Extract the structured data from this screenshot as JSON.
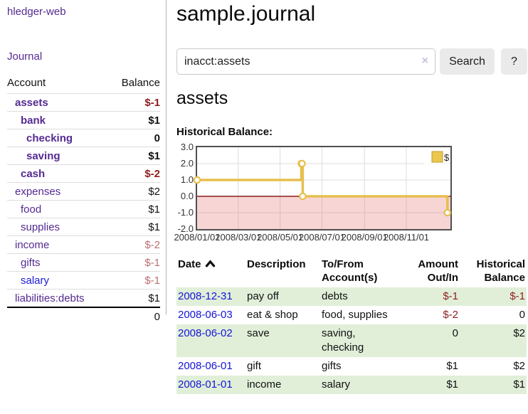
{
  "sidebar": {
    "brand": "hledger-web",
    "nav_journal": "Journal",
    "accounts": {
      "col_account": "Account",
      "col_balance": "Balance",
      "rows": [
        {
          "account": "assets",
          "balance": "$-1"
        },
        {
          "account": "bank",
          "balance": "$1"
        },
        {
          "account": "checking",
          "balance": "0"
        },
        {
          "account": "saving",
          "balance": "$1"
        },
        {
          "account": "cash",
          "balance": "$-2"
        },
        {
          "account": "expenses",
          "balance": "$2"
        },
        {
          "account": "food",
          "balance": "$1"
        },
        {
          "account": "supplies",
          "balance": "$1"
        },
        {
          "account": "income",
          "balance": "$-2"
        },
        {
          "account": "gifts",
          "balance": "$-1"
        },
        {
          "account": "salary",
          "balance": "$-1"
        },
        {
          "account": "liabilities:debts",
          "balance": "$1"
        }
      ],
      "total": "0"
    }
  },
  "main": {
    "title": "sample.journal",
    "search": {
      "value": "inacct:assets",
      "clear_icon": "×",
      "button": "Search",
      "help": "?"
    },
    "account_heading": "assets",
    "chart": {
      "heading": "Historical Balance:",
      "chart_data": {
        "type": "line",
        "step": true,
        "series": [
          {
            "name": "$",
            "points": [
              [
                "2008-01-01",
                1
              ],
              [
                "2008-06-01",
                2
              ],
              [
                "2008-06-02",
                2
              ],
              [
                "2008-06-03",
                0
              ],
              [
                "2008-12-31",
                -1
              ]
            ]
          }
        ],
        "x_ticks": [
          "2008/01/01",
          "2008/03/01",
          "2008/05/01",
          "2008/07/01",
          "2008/09/01",
          "2008/11/01"
        ],
        "y_ticks": [
          "3.0",
          "2.0",
          "1.0",
          "0.0",
          "-1.0",
          "-2.0"
        ],
        "ylim": [
          -2,
          3
        ],
        "legend_position": "top-right",
        "negative_region_shaded": true,
        "colors": {
          "line": "#e6bf4e",
          "marker_fill": "#ffffff",
          "negative_fill": "rgba(229,115,115,0.30)",
          "zero_line": "#8c1c1c",
          "grid": "#dcdcdc",
          "border": "#4f4f4f",
          "legend_fill": "#ecc74f",
          "legend_border": "#c29b2c"
        }
      }
    },
    "register": {
      "headers": {
        "date": "Date",
        "description": "Description",
        "accounts": "To/From\nAccount(s)",
        "amount": "Amount\nOut/In",
        "balance": "Historical\nBalance"
      },
      "rows": [
        {
          "date": "2008-12-31",
          "description": "pay off",
          "accounts": "debts",
          "amount": "$-1",
          "balance": "$-1"
        },
        {
          "date": "2008-06-03",
          "description": "eat & shop",
          "accounts": "food, supplies",
          "amount": "$-2",
          "balance": "0"
        },
        {
          "date": "2008-06-02",
          "description": "save",
          "accounts": "saving,\nchecking",
          "amount": "0",
          "balance": "$2"
        },
        {
          "date": "2008-06-01",
          "description": "gift",
          "accounts": "gifts",
          "amount": "$1",
          "balance": "$2"
        },
        {
          "date": "2008-01-01",
          "description": "income",
          "accounts": "salary",
          "amount": "$1",
          "balance": "$1"
        }
      ]
    }
  },
  "colors": {
    "link_purple": "#552a91",
    "link_blue": "#1414d8",
    "negative_strong": "#8f1d1d",
    "negative_soft": "#bb6f6f",
    "row_green": "#e1efd9"
  }
}
